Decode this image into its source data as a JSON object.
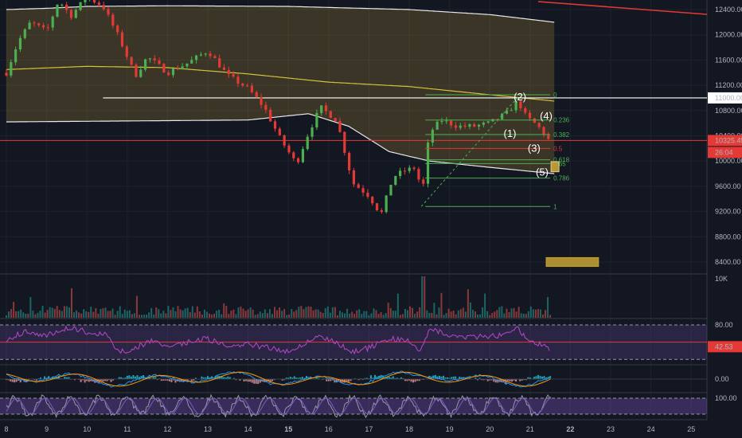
{
  "chart_data": {
    "type": "line",
    "title": "",
    "price_axis": {
      "ticks": [
        "12400.00",
        "12000.00",
        "11600.00",
        "11200.00",
        "10800.00",
        "10400.00",
        "10000.00",
        "9600.00",
        "9200.00",
        "8800.00",
        "8400.00"
      ],
      "range": [
        8000,
        12550
      ]
    },
    "time_axis": {
      "ticks": [
        "8",
        "9",
        "10",
        "11",
        "12",
        "13",
        "14",
        "15",
        "16",
        "17",
        "18",
        "19",
        "20",
        "21",
        "22",
        "23",
        "24",
        "25"
      ],
      "bold_ticks": [
        "15",
        "22"
      ]
    },
    "price_labels": {
      "level": "11000.00",
      "current": "10325.45",
      "countdown": "26:04"
    },
    "price_series": {
      "name": "",
      "anchors": [
        {
          "day": 8.0,
          "price": 11400
        },
        {
          "day": 8.3,
          "price": 11900
        },
        {
          "day": 8.6,
          "price": 12200
        },
        {
          "day": 9.0,
          "price": 12050
        },
        {
          "day": 9.3,
          "price": 12550
        },
        {
          "day": 9.6,
          "price": 12300
        },
        {
          "day": 10.0,
          "price": 12600
        },
        {
          "day": 10.4,
          "price": 12450
        },
        {
          "day": 10.8,
          "price": 11950
        },
        {
          "day": 11.2,
          "price": 11350
        },
        {
          "day": 11.5,
          "price": 11650
        },
        {
          "day": 12.0,
          "price": 11400
        },
        {
          "day": 12.5,
          "price": 11550
        },
        {
          "day": 13.0,
          "price": 11750
        },
        {
          "day": 13.5,
          "price": 11350
        },
        {
          "day": 14.0,
          "price": 11150
        },
        {
          "day": 14.4,
          "price": 10850
        },
        {
          "day": 14.8,
          "price": 10350
        },
        {
          "day": 15.2,
          "price": 9950
        },
        {
          "day": 15.5,
          "price": 10450
        },
        {
          "day": 15.8,
          "price": 10850
        },
        {
          "day": 16.2,
          "price": 10650
        },
        {
          "day": 16.6,
          "price": 9650
        },
        {
          "day": 17.0,
          "price": 9450
        },
        {
          "day": 17.3,
          "price": 9150
        },
        {
          "day": 17.6,
          "price": 9750
        },
        {
          "day": 17.9,
          "price": 9850
        },
        {
          "day": 18.2,
          "price": 9900
        },
        {
          "day": 18.3,
          "price": 9350
        },
        {
          "day": 18.5,
          "price": 10450
        },
        {
          "day": 18.8,
          "price": 10650
        },
        {
          "day": 19.2,
          "price": 10550
        },
        {
          "day": 19.6,
          "price": 10550
        },
        {
          "day": 20.0,
          "price": 10600
        },
        {
          "day": 20.4,
          "price": 10750
        },
        {
          "day": 20.7,
          "price": 10950
        },
        {
          "day": 20.9,
          "price": 10700
        },
        {
          "day": 21.2,
          "price": 10550
        },
        {
          "day": 21.5,
          "price": 10300
        }
      ]
    },
    "band_upper": [
      {
        "day": 8.0,
        "price": 12400
      },
      {
        "day": 9.0,
        "price": 12420
      },
      {
        "day": 10.0,
        "price": 12450
      },
      {
        "day": 12.0,
        "price": 12460
      },
      {
        "day": 15.0,
        "price": 12450
      },
      {
        "day": 18.0,
        "price": 12400
      },
      {
        "day": 20.0,
        "price": 12320
      },
      {
        "day": 21.6,
        "price": 12200
      }
    ],
    "band_middle": [
      {
        "day": 8.0,
        "price": 11450
      },
      {
        "day": 10.0,
        "price": 11500
      },
      {
        "day": 12.0,
        "price": 11480
      },
      {
        "day": 14.0,
        "price": 11380
      },
      {
        "day": 16.0,
        "price": 11250
      },
      {
        "day": 18.0,
        "price": 11180
      },
      {
        "day": 20.0,
        "price": 11050
      },
      {
        "day": 21.6,
        "price": 10950
      }
    ],
    "band_lower": [
      {
        "day": 8.0,
        "price": 10620
      },
      {
        "day": 10.0,
        "price": 10630
      },
      {
        "day": 12.0,
        "price": 10640
      },
      {
        "day": 14.0,
        "price": 10650
      },
      {
        "day": 15.5,
        "price": 10750
      },
      {
        "day": 16.5,
        "price": 10550
      },
      {
        "day": 17.5,
        "price": 10150
      },
      {
        "day": 18.5,
        "price": 10000
      },
      {
        "day": 20.0,
        "price": 9900
      },
      {
        "day": 21.6,
        "price": 9800
      }
    ],
    "fib_levels": [
      {
        "label": "0",
        "price": 11050
      },
      {
        "label": "0.236",
        "price": 10650
      },
      {
        "label": "0.382",
        "price": 10420
      },
      {
        "label": "0.5",
        "price": 10200
      },
      {
        "label": "0.618",
        "price": 10020
      },
      {
        "label": "0.65",
        "price": 9960
      },
      {
        "label": "0.786",
        "price": 9730
      },
      {
        "label": "1",
        "price": 9280
      }
    ],
    "waves": [
      {
        "label": "(1)",
        "day": 20.5,
        "price": 10380
      },
      {
        "label": "(2)",
        "day": 20.75,
        "price": 10960
      },
      {
        "label": "(3)",
        "day": 21.1,
        "price": 10150
      },
      {
        "label": "(4)",
        "day": 21.4,
        "price": 10660
      },
      {
        "label": "(5)",
        "day": 21.3,
        "price": 9770
      }
    ],
    "volume": {
      "axis_label": "10K"
    },
    "rsi": {
      "value_label": "42.53",
      "upper_label": "80.00",
      "series": [
        {
          "day": 8.0,
          "v": 55
        },
        {
          "day": 8.5,
          "v": 70
        },
        {
          "day": 9.0,
          "v": 62
        },
        {
          "day": 9.5,
          "v": 75
        },
        {
          "day": 10.0,
          "v": 68
        },
        {
          "day": 10.5,
          "v": 62
        },
        {
          "day": 10.8,
          "v": 32
        },
        {
          "day": 11.2,
          "v": 40
        },
        {
          "day": 11.6,
          "v": 52
        },
        {
          "day": 12.0,
          "v": 44
        },
        {
          "day": 12.5,
          "v": 50
        },
        {
          "day": 13.0,
          "v": 56
        },
        {
          "day": 13.5,
          "v": 42
        },
        {
          "day": 14.0,
          "v": 46
        },
        {
          "day": 14.5,
          "v": 40
        },
        {
          "day": 15.0,
          "v": 34
        },
        {
          "day": 15.5,
          "v": 52
        },
        {
          "day": 15.8,
          "v": 62
        },
        {
          "day": 16.2,
          "v": 48
        },
        {
          "day": 16.6,
          "v": 34
        },
        {
          "day": 17.0,
          "v": 40
        },
        {
          "day": 17.5,
          "v": 56
        },
        {
          "day": 18.0,
          "v": 52
        },
        {
          "day": 18.3,
          "v": 35
        },
        {
          "day": 18.5,
          "v": 76
        },
        {
          "day": 19.0,
          "v": 62
        },
        {
          "day": 19.5,
          "v": 58
        },
        {
          "day": 20.0,
          "v": 60
        },
        {
          "day": 20.5,
          "v": 64
        },
        {
          "day": 20.7,
          "v": 74
        },
        {
          "day": 21.0,
          "v": 50
        },
        {
          "day": 21.3,
          "v": 46
        },
        {
          "day": 21.5,
          "v": 38
        }
      ]
    },
    "macd": {
      "zero_label": "0.00"
    },
    "stoch": {
      "upper_label": "100.00"
    }
  }
}
